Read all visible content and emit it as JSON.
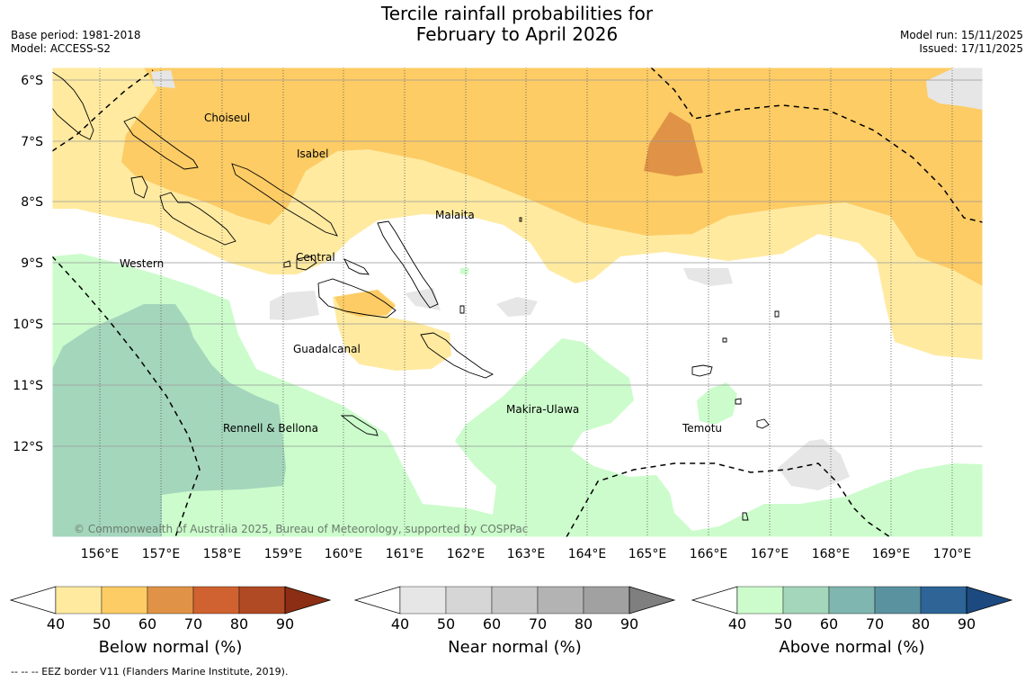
{
  "header": {
    "title_line1": "Tercile rainfall probabilities for",
    "title_line2": "February to April 2026",
    "base_period": "Base period: 1981-2018",
    "model": "Model: ACCESS-S2",
    "model_run": "Model run: 15/11/2025",
    "issued": "Issued: 17/11/2025"
  },
  "map": {
    "lat_ticks": [
      "6°S",
      "7°S",
      "8°S",
      "9°S",
      "10°S",
      "11°S",
      "12°S"
    ],
    "lon_ticks": [
      "156°E",
      "157°E",
      "158°E",
      "159°E",
      "160°E",
      "161°E",
      "162°E",
      "163°E",
      "164°E",
      "165°E",
      "166°E",
      "167°E",
      "168°E",
      "169°E",
      "170°E"
    ],
    "province_labels": [
      "Choiseul",
      "Isabel",
      "Malaita",
      "Western",
      "Central",
      "Guadalcanal",
      "Makira-Ulawa",
      "Rennell & Bellona",
      "Temotu"
    ],
    "copyright": "© Commonwealth of Australia 2025, Bureau of Meteorology, supported by COSPPac",
    "colors": {
      "below_50": "#ffeaa0",
      "below_60": "#fdcc65",
      "below_70": "#e09346",
      "near_40": "#e6e6e6",
      "above_50": "#ccfccc",
      "above_60": "#a4d6bc",
      "background": "#ffffff"
    }
  },
  "colorbars": [
    {
      "title": "Below normal (%)",
      "ticks": [
        "40",
        "50",
        "60",
        "70",
        "80",
        "90"
      ],
      "colors": [
        "#ffffff",
        "#ffeaa0",
        "#fdcc65",
        "#e09346",
        "#cf6230",
        "#b04a24",
        "#8c2e14"
      ]
    },
    {
      "title": "Near normal (%)",
      "ticks": [
        "40",
        "50",
        "60",
        "70",
        "80",
        "90"
      ],
      "colors": [
        "#ffffff",
        "#e6e6e6",
        "#d6d6d6",
        "#c6c6c6",
        "#b3b3b3",
        "#a1a1a1",
        "#7f7f7f"
      ]
    },
    {
      "title": "Above normal (%)",
      "ticks": [
        "40",
        "50",
        "60",
        "70",
        "80",
        "90"
      ],
      "colors": [
        "#ffffff",
        "#ccfccc",
        "#a4d6bc",
        "#80b6b0",
        "#5a92a0",
        "#2e6496",
        "#1c4a80"
      ]
    }
  ],
  "footnote": "--  --  -- EEZ border V11 (Flanders Marine Institute, 2019)."
}
